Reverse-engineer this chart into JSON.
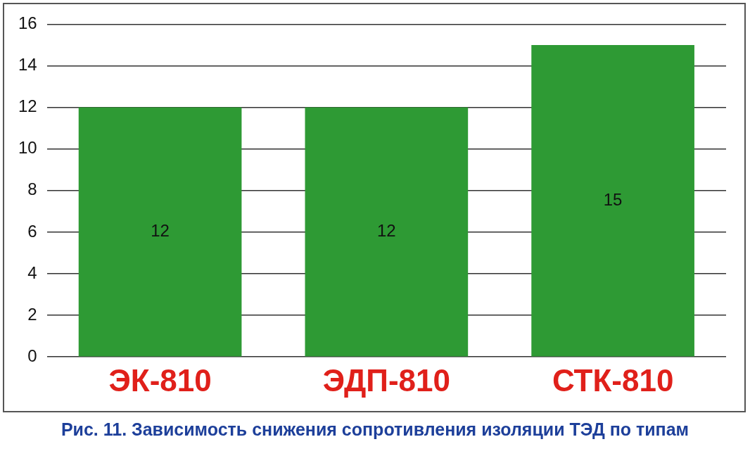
{
  "chart_data": {
    "type": "bar",
    "title": "Рис. 11. Зависимость снижения сопротивления изоляции ТЭД по типам",
    "categories": [
      "ЭК-810",
      "ЭДП-810",
      "СТК-810"
    ],
    "values": [
      12,
      12,
      15
    ],
    "color": "#2e9a34",
    "ylim": [
      0,
      16
    ],
    "yticks": [
      0,
      2,
      4,
      6,
      8,
      10,
      12,
      14,
      16
    ],
    "grid": "y",
    "data_labels": true
  }
}
